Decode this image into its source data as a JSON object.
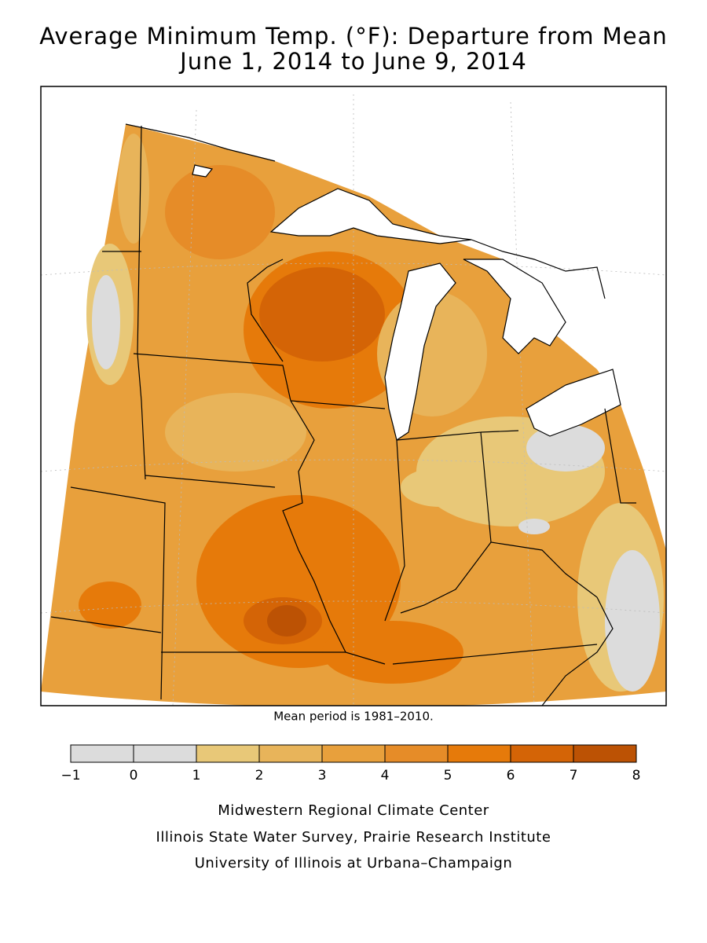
{
  "header": {
    "title_line1": "Average Minimum Temp. (°F): Departure from Mean",
    "title_line2": "June 1, 2014 to June 9, 2014"
  },
  "note": "Mean period is 1981–2010.",
  "legend": {
    "ticks": [
      {
        "value": -1,
        "label": "−1"
      },
      0,
      1,
      2,
      3,
      4,
      5,
      6,
      7,
      8
    ],
    "colors": [
      "#dcdcdc",
      "#dcdcdc",
      "#e8c878",
      "#e8b45a",
      "#e8a03c",
      "#e68c28",
      "#e67a0a",
      "#d46406",
      "#bc5204"
    ]
  },
  "credits": [
    "Midwestern Regional Climate Center",
    "Illinois State Water Survey, Prairie Research Institute",
    "University of Illinois at Urbana–Champaign"
  ]
}
